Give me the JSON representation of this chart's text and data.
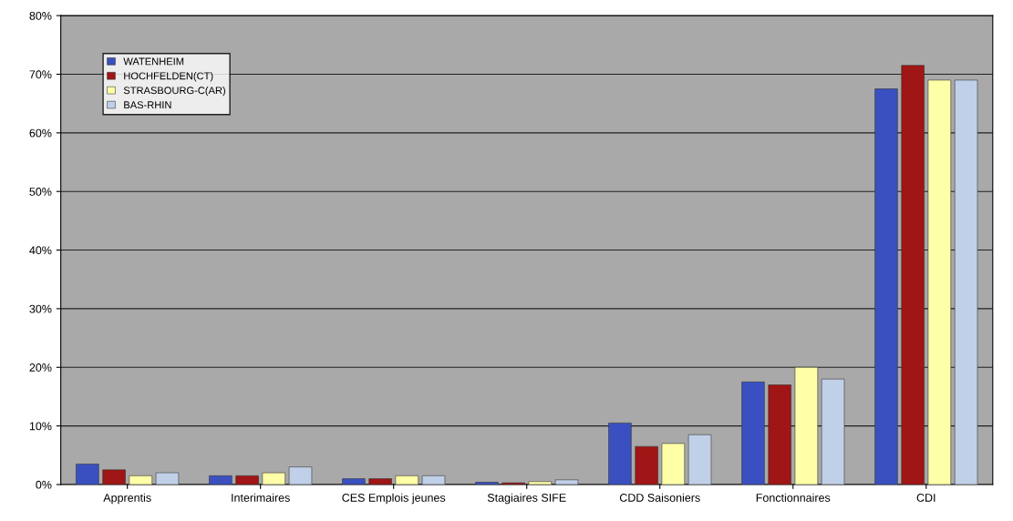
{
  "chart_data": {
    "type": "bar",
    "categories": [
      "Apprentis",
      "Interimaires",
      "CES Emplois jeunes",
      "Stagiaires SIFE",
      "CDD Saisoniers",
      "Fonctionnaires",
      "CDI"
    ],
    "series": [
      {
        "name": "WATENHEIM",
        "color": "#3a50c0",
        "values": [
          3.5,
          1.5,
          1,
          0.4,
          10.5,
          17.5,
          67.5
        ]
      },
      {
        "name": "HOCHFELDEN(CT)",
        "color": "#a01515",
        "values": [
          2.5,
          1.5,
          1,
          0.3,
          6.5,
          17,
          71.5
        ]
      },
      {
        "name": "STRASBOURG-C(AR)",
        "color": "#ffffa8",
        "values": [
          1.5,
          2,
          1.5,
          0.5,
          7,
          20,
          69
        ]
      },
      {
        "name": "BAS-RHIN",
        "color": "#c0d0e8",
        "values": [
          2,
          3,
          1.5,
          0.8,
          8.5,
          18,
          69
        ]
      }
    ],
    "ylim": [
      0,
      80
    ],
    "yticks": [
      {
        "value": 0,
        "label": "0%"
      },
      {
        "value": 10,
        "label": "10%"
      },
      {
        "value": 20,
        "label": "20%"
      },
      {
        "value": 30,
        "label": "30%"
      },
      {
        "value": 40,
        "label": "40%"
      },
      {
        "value": 50,
        "label": "50%"
      },
      {
        "value": 60,
        "label": "60%"
      },
      {
        "value": 70,
        "label": "70%"
      },
      {
        "value": 80,
        "label": "80%"
      }
    ],
    "grid": "y",
    "legend": "top left"
  }
}
